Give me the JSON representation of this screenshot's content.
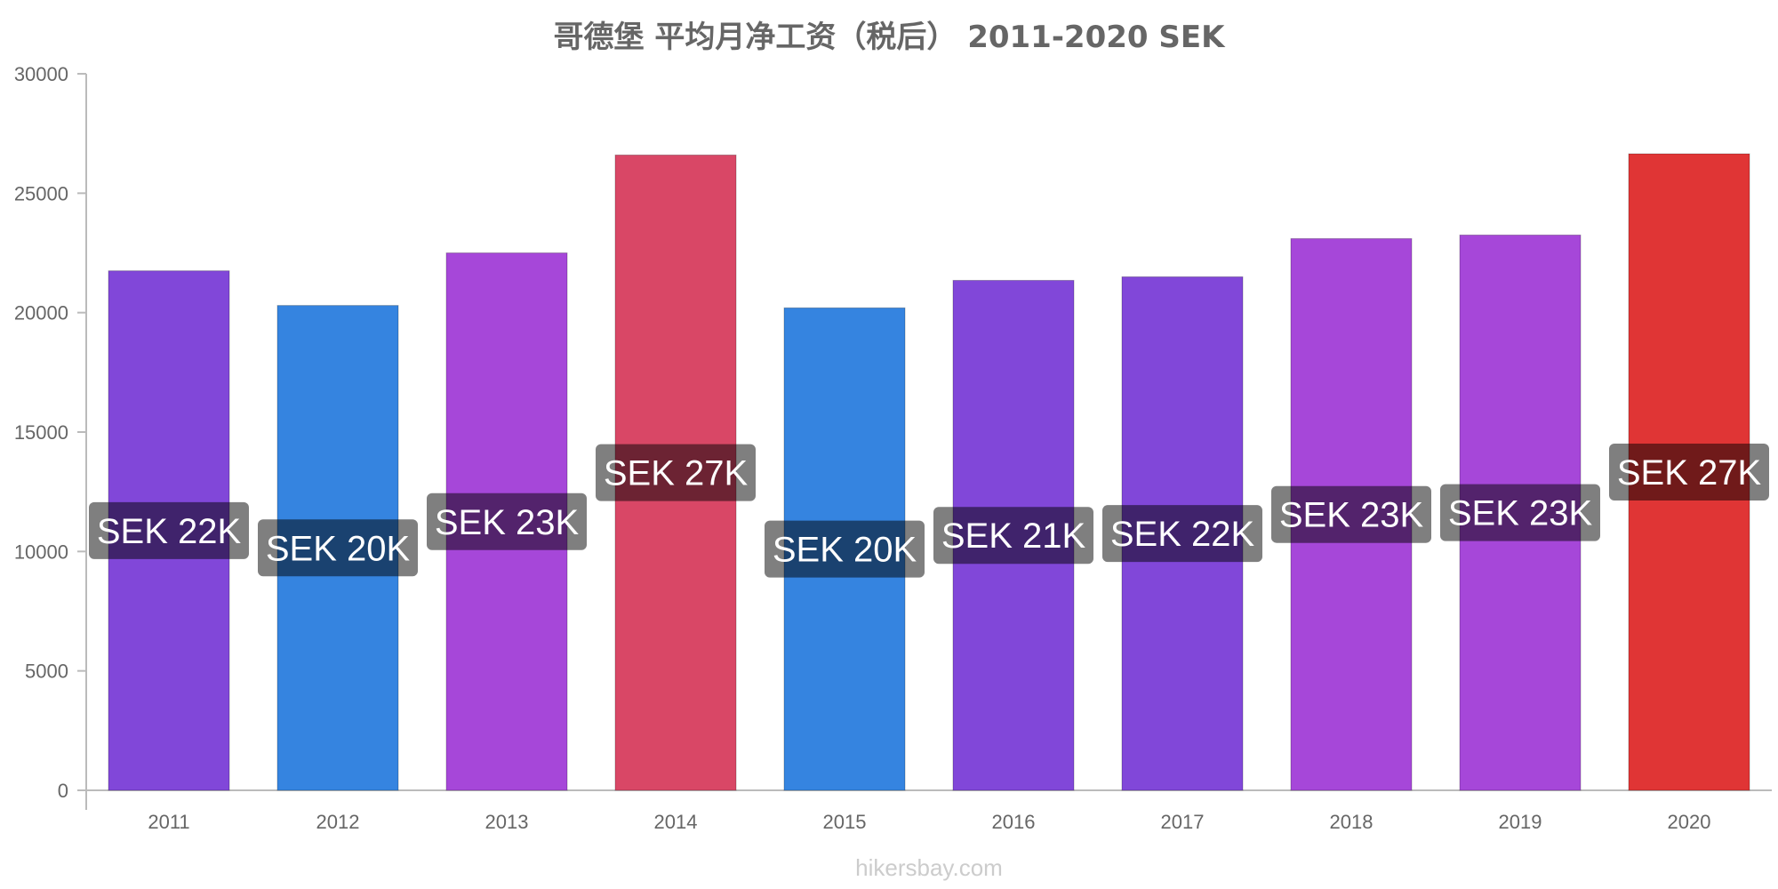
{
  "chart_data": {
    "type": "bar",
    "title": "哥德堡 平均月净工资（税后） 2011-2020 SEK",
    "categories": [
      "2011",
      "2012",
      "2013",
      "2014",
      "2015",
      "2016",
      "2017",
      "2018",
      "2019",
      "2020"
    ],
    "values": [
      21750,
      20300,
      22500,
      26600,
      20200,
      21350,
      21500,
      23100,
      23250,
      26650
    ],
    "data_labels": [
      "SEK 22K",
      "SEK 20K",
      "SEK 23K",
      "SEK 27K",
      "SEK 20K",
      "SEK 21K",
      "SEK 22K",
      "SEK 23K",
      "SEK 23K",
      "SEK 27K"
    ],
    "colors": [
      "#8147d9",
      "#3584e0",
      "#a647d9",
      "#d94766",
      "#3584e0",
      "#8147d9",
      "#8147d9",
      "#a647d9",
      "#a647d9",
      "#e03535"
    ],
    "ylim": [
      0,
      30000
    ],
    "yticks": [
      "0",
      "5000",
      "10000",
      "15000",
      "20000",
      "25000",
      "30000"
    ],
    "xlabel": "",
    "ylabel": "",
    "grid": false
  },
  "watermark": "hikersbay.com"
}
